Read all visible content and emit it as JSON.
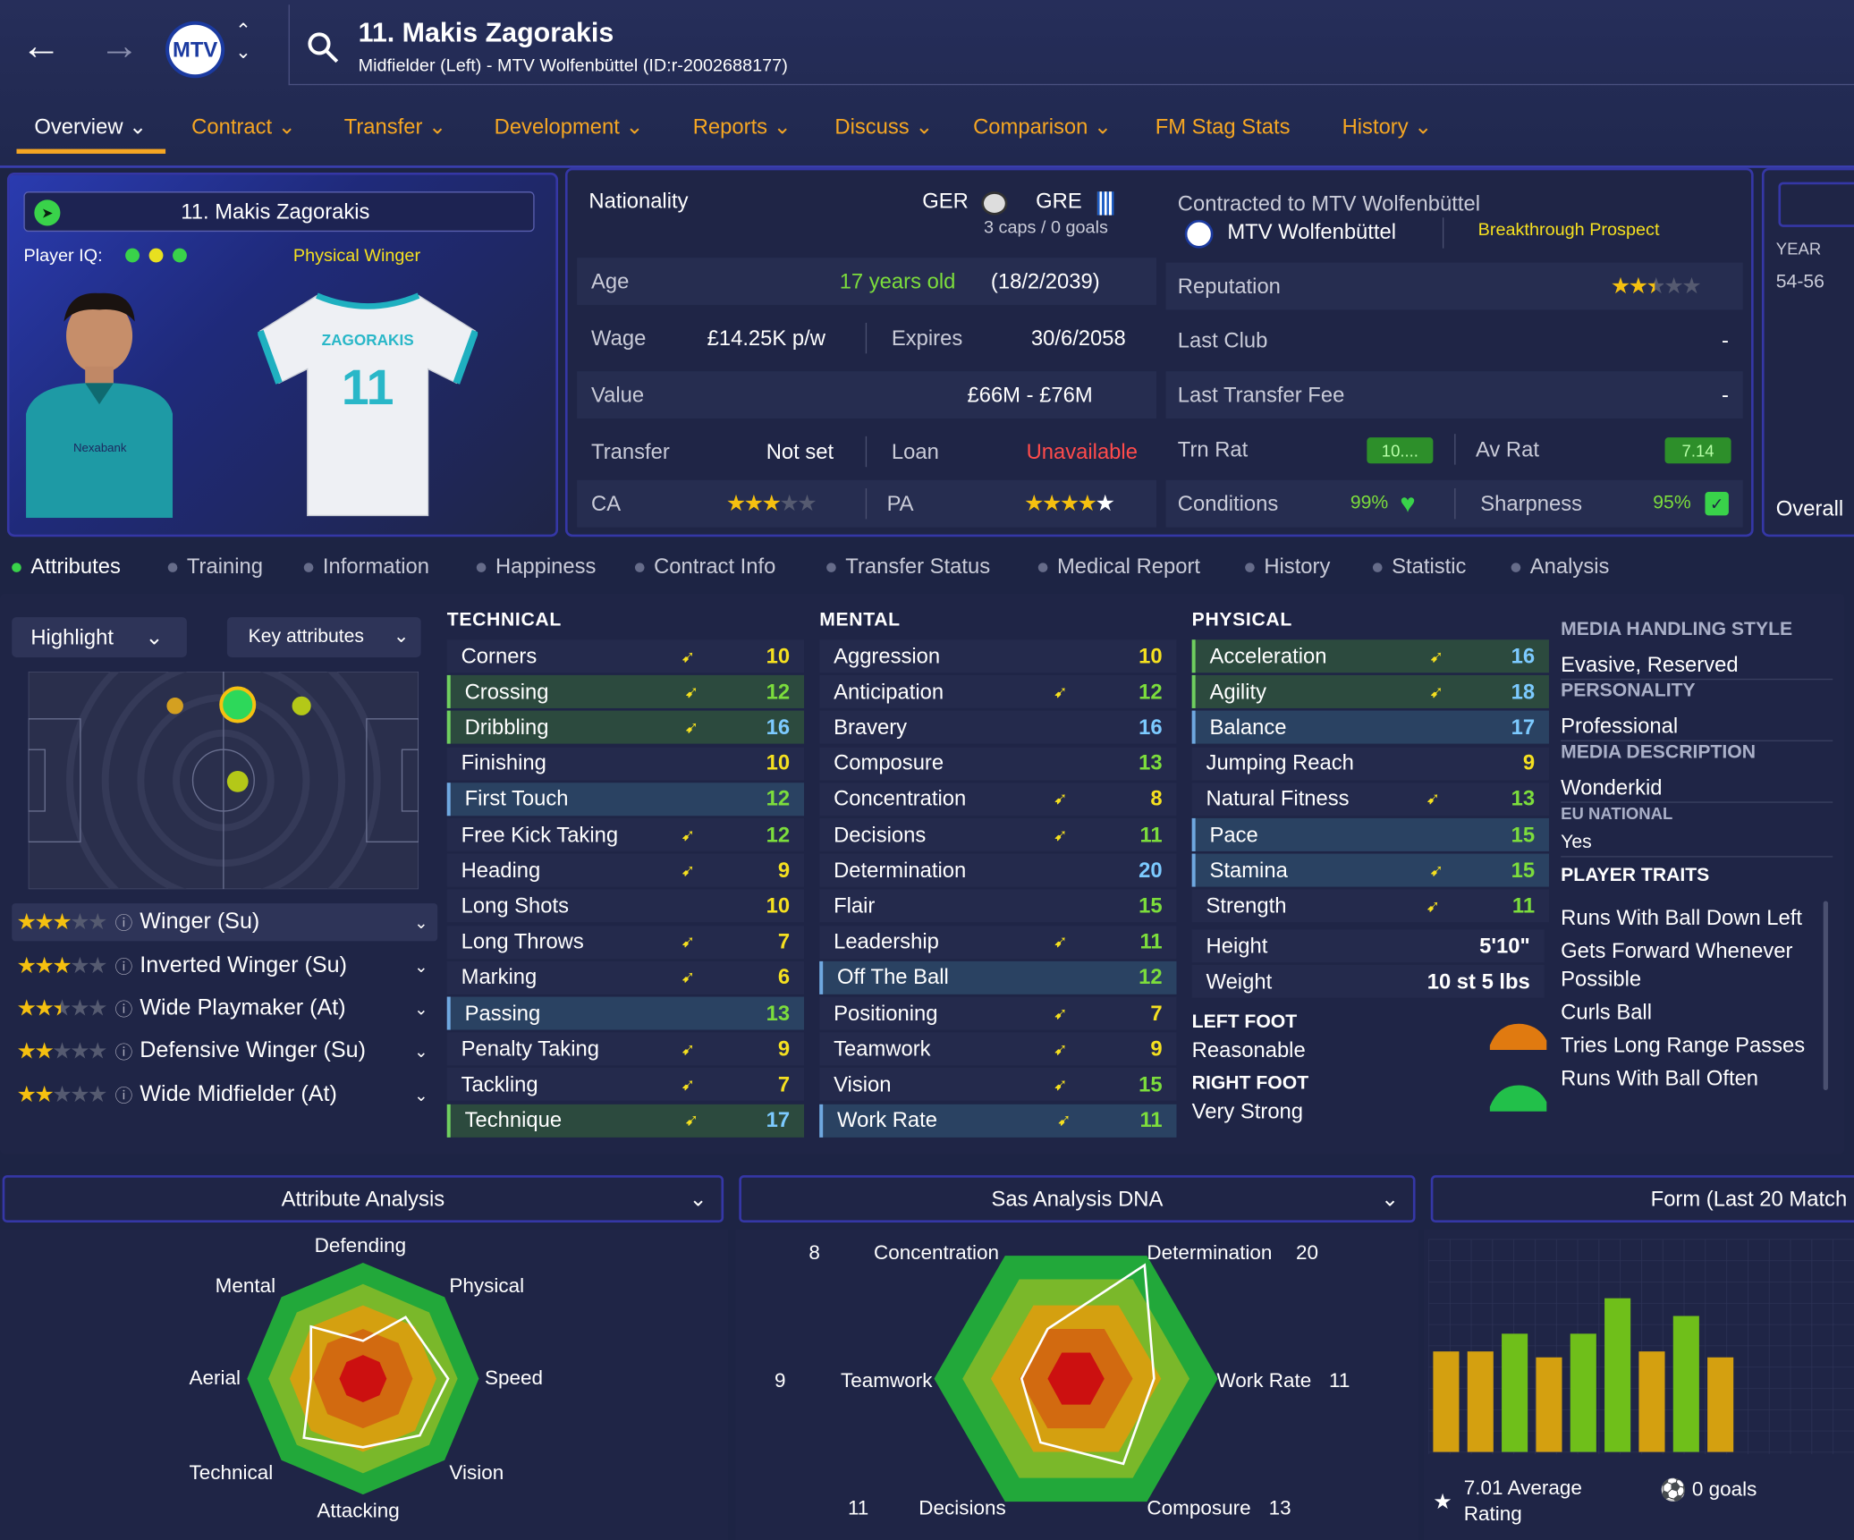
{
  "header": {
    "title": "11. Makis Zagorakis",
    "subtitle": "Midfielder (Left) - MTV Wolfenbüttel (ID:r-2002688177)",
    "crest_text": "MTV"
  },
  "menu": [
    "Overview",
    "Contract",
    "Transfer",
    "Development",
    "Reports",
    "Discuss",
    "Comparison",
    "FM Stag Stats",
    "History"
  ],
  "profile": {
    "name": "11. Makis Zagorakis",
    "iq_label": "Player IQ:",
    "role_tag": "Physical Winger",
    "shirt_name": "ZAGORAKIS",
    "shirt_number": "11",
    "sponsor": "Nexabank"
  },
  "info": {
    "nationality_label": "Nationality",
    "nat1": "GER",
    "nat2": "GRE",
    "caps": "3 caps / 0 goals",
    "age_label": "Age",
    "age": "17 years old",
    "dob": "(18/2/2039)",
    "wage_label": "Wage",
    "wage": "£14.25K p/w",
    "expires_label": "Expires",
    "expires": "30/6/2058",
    "value_label": "Value",
    "value": "£66M - £76M",
    "transfer_label": "Transfer",
    "transfer": "Not set",
    "loan_label": "Loan",
    "loan": "Unavailable",
    "ca_label": "CA",
    "pa_label": "PA",
    "ca_stars": 3,
    "pa_stars": 5
  },
  "club": {
    "contracted": "Contracted to MTV Wolfenbüttel",
    "club": "MTV Wolfenbüttel",
    "status": "Breakthrough Prospect",
    "reputation_label": "Reputation",
    "reputation_stars": 2.5,
    "last_club_label": "Last Club",
    "last_club": "-",
    "fee_label": "Last Transfer Fee",
    "fee": "-",
    "trn_label": "Trn Rat",
    "trn": "10....",
    "av_label": "Av Rat",
    "av": "7.14",
    "cond_label": "Conditions",
    "cond": "99%",
    "sharp_label": "Sharpness",
    "sharp": "95%"
  },
  "side": {
    "year_label": "YEAR",
    "year": "54-56",
    "overall": "Overall"
  },
  "tabs": [
    "Attributes",
    "Training",
    "Information",
    "Happiness",
    "Contract Info",
    "Transfer Status",
    "Medical Report",
    "History",
    "Statistic",
    "Analysis"
  ],
  "controls": {
    "highlight": "Highlight",
    "key": "Key attributes"
  },
  "roles": [
    {
      "name": "Winger (Su)",
      "stars": 3
    },
    {
      "name": "Inverted Winger (Su)",
      "stars": 3
    },
    {
      "name": "Wide Playmaker (At)",
      "stars": 2.5
    },
    {
      "name": "Defensive Winger (Su)",
      "stars": 2
    },
    {
      "name": "Wide Midfielder (At)",
      "stars": 2
    }
  ],
  "technical": {
    "title": "TECHNICAL",
    "items": [
      {
        "n": "Corners",
        "v": "10",
        "c": "y",
        "h": "plain",
        "a": true
      },
      {
        "n": "Crossing",
        "v": "12",
        "c": "g",
        "h": "green",
        "a": true
      },
      {
        "n": "Dribbling",
        "v": "16",
        "c": "b",
        "h": "green",
        "a": true
      },
      {
        "n": "Finishing",
        "v": "10",
        "c": "y",
        "h": "plain",
        "a": false
      },
      {
        "n": "First Touch",
        "v": "12",
        "c": "g",
        "h": "blue",
        "a": false
      },
      {
        "n": "Free Kick Taking",
        "v": "12",
        "c": "g",
        "h": "plain",
        "a": true
      },
      {
        "n": "Heading",
        "v": "9",
        "c": "y",
        "h": "plain",
        "a": true
      },
      {
        "n": "Long Shots",
        "v": "10",
        "c": "y",
        "h": "plain",
        "a": false
      },
      {
        "n": "Long Throws",
        "v": "7",
        "c": "y",
        "h": "plain",
        "a": true
      },
      {
        "n": "Marking",
        "v": "6",
        "c": "y",
        "h": "plain",
        "a": true
      },
      {
        "n": "Passing",
        "v": "13",
        "c": "g",
        "h": "blue",
        "a": false
      },
      {
        "n": "Penalty Taking",
        "v": "9",
        "c": "y",
        "h": "plain",
        "a": true
      },
      {
        "n": "Tackling",
        "v": "7",
        "c": "y",
        "h": "plain",
        "a": true
      },
      {
        "n": "Technique",
        "v": "17",
        "c": "b",
        "h": "green",
        "a": true
      }
    ]
  },
  "mental": {
    "title": "MENTAL",
    "items": [
      {
        "n": "Aggression",
        "v": "10",
        "c": "y",
        "h": "plain",
        "a": false
      },
      {
        "n": "Anticipation",
        "v": "12",
        "c": "g",
        "h": "plain",
        "a": true
      },
      {
        "n": "Bravery",
        "v": "16",
        "c": "b",
        "h": "plain",
        "a": false
      },
      {
        "n": "Composure",
        "v": "13",
        "c": "g",
        "h": "plain",
        "a": false
      },
      {
        "n": "Concentration",
        "v": "8",
        "c": "y",
        "h": "plain",
        "a": true
      },
      {
        "n": "Decisions",
        "v": "11",
        "c": "g",
        "h": "plain",
        "a": true
      },
      {
        "n": "Determination",
        "v": "20",
        "c": "b",
        "h": "plain",
        "a": false
      },
      {
        "n": "Flair",
        "v": "15",
        "c": "g",
        "h": "plain",
        "a": false
      },
      {
        "n": "Leadership",
        "v": "11",
        "c": "g",
        "h": "plain",
        "a": true
      },
      {
        "n": "Off The Ball",
        "v": "12",
        "c": "g",
        "h": "blue",
        "a": false
      },
      {
        "n": "Positioning",
        "v": "7",
        "c": "y",
        "h": "plain",
        "a": true
      },
      {
        "n": "Teamwork",
        "v": "9",
        "c": "y",
        "h": "plain",
        "a": true
      },
      {
        "n": "Vision",
        "v": "15",
        "c": "g",
        "h": "plain",
        "a": true
      },
      {
        "n": "Work Rate",
        "v": "11",
        "c": "g",
        "h": "blue",
        "a": true
      }
    ]
  },
  "physical": {
    "title": "PHYSICAL",
    "items": [
      {
        "n": "Acceleration",
        "v": "16",
        "c": "b",
        "h": "green",
        "a": true
      },
      {
        "n": "Agility",
        "v": "18",
        "c": "b",
        "h": "green",
        "a": true
      },
      {
        "n": "Balance",
        "v": "17",
        "c": "b",
        "h": "blue",
        "a": false
      },
      {
        "n": "Jumping Reach",
        "v": "9",
        "c": "y",
        "h": "plain",
        "a": false
      },
      {
        "n": "Natural Fitness",
        "v": "13",
        "c": "g",
        "h": "plain",
        "a": true
      },
      {
        "n": "Pace",
        "v": "15",
        "c": "g",
        "h": "blue",
        "a": false
      },
      {
        "n": "Stamina",
        "v": "15",
        "c": "g",
        "h": "blue",
        "a": true
      },
      {
        "n": "Strength",
        "v": "11",
        "c": "g",
        "h": "plain",
        "a": true
      }
    ],
    "height_label": "Height",
    "height": "5'10\"",
    "weight_label": "Weight",
    "weight": "10 st 5 lbs",
    "left_foot_label": "LEFT FOOT",
    "left_foot": "Reasonable",
    "right_foot_label": "RIGHT FOOT",
    "right_foot": "Very Strong"
  },
  "media": {
    "style_label": "MEDIA HANDLING STYLE",
    "style": "Evasive, Reserved",
    "personality_label": "PERSONALITY",
    "personality": "Professional",
    "desc_label": "MEDIA DESCRIPTION",
    "desc": "Wonderkid",
    "eu_label": "EU NATIONAL",
    "eu": "Yes",
    "traits_label": "PLAYER TRAITS",
    "traits": [
      "Runs With Ball Down Left",
      "Gets Forward Whenever Possible",
      "Curls Ball",
      "Tries Long Range Passes",
      "Runs With Ball Often"
    ]
  },
  "analysis": {
    "title": "Attribute Analysis",
    "labels": [
      "Defending",
      "Physical",
      "Speed",
      "Vision",
      "Attacking",
      "Technical",
      "Aerial",
      "Mental"
    ]
  },
  "dna": {
    "title": "Sas Analysis DNA",
    "labels": [
      "Determination",
      "Work Rate",
      "Composure",
      "Decisions",
      "Teamwork",
      "Concentration"
    ],
    "values": [
      "20",
      "11",
      "13",
      "11",
      "9",
      "8"
    ]
  },
  "form": {
    "title": "Form (Last 20 Match",
    "avg": "7.01 Average Rating",
    "goals": "0 goals"
  },
  "colors": {
    "accent": "#f5a623",
    "panel_border": "#3537a6",
    "green": "#7cdd3c",
    "yellow": "#f5e020",
    "blue": "#7ccaff"
  },
  "chart_data": {
    "type": "bar",
    "values": [
      6.7,
      6.7,
      7.0,
      6.6,
      7.0,
      7.6,
      6.7,
      7.3,
      6.6
    ],
    "title": "Form (Last 20 Match"
  }
}
